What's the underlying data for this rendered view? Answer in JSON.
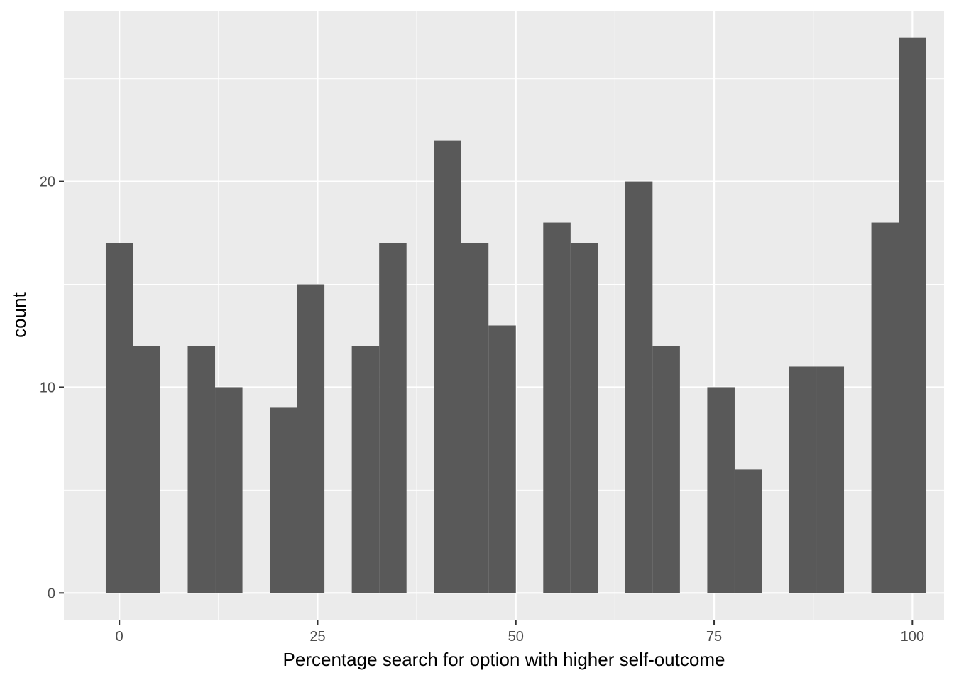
{
  "chart_data": {
    "type": "bar",
    "subtype": "histogram",
    "title": "",
    "xlabel": "Percentage search for option with higher self-outcome",
    "ylabel": "count",
    "xlim": [
      -7,
      104
    ],
    "ylim": [
      -1.3,
      28.3
    ],
    "x_ticks": [
      0,
      25,
      50,
      75,
      100
    ],
    "y_ticks": [
      0,
      10,
      20
    ],
    "x_tick_labels": [
      "0",
      "25",
      "50",
      "75",
      "100"
    ],
    "y_tick_labels": [
      "0",
      "10",
      "20"
    ],
    "x_minor_breaks": [
      -12.5,
      12.5,
      37.5,
      62.5,
      87.5
    ],
    "y_minor_breaks": [
      5,
      15,
      25
    ],
    "grid": true,
    "bar_color": "#595959",
    "panel_color": "#ebebeb",
    "grid_color": "#ffffff",
    "bins": [
      {
        "x0": -1.72,
        "x1": 1.72,
        "count": 17
      },
      {
        "x0": 1.72,
        "x1": 5.17,
        "count": 12
      },
      {
        "x0": 5.17,
        "x1": 8.62,
        "count": 0
      },
      {
        "x0": 8.62,
        "x1": 12.07,
        "count": 12
      },
      {
        "x0": 12.07,
        "x1": 15.52,
        "count": 10
      },
      {
        "x0": 15.52,
        "x1": 18.97,
        "count": 0
      },
      {
        "x0": 18.97,
        "x1": 22.41,
        "count": 9
      },
      {
        "x0": 22.41,
        "x1": 25.86,
        "count": 15
      },
      {
        "x0": 25.86,
        "x1": 29.31,
        "count": 0
      },
      {
        "x0": 29.31,
        "x1": 32.76,
        "count": 12
      },
      {
        "x0": 32.76,
        "x1": 36.21,
        "count": 17
      },
      {
        "x0": 36.21,
        "x1": 39.66,
        "count": 0
      },
      {
        "x0": 39.66,
        "x1": 43.1,
        "count": 22
      },
      {
        "x0": 43.1,
        "x1": 46.55,
        "count": 17
      },
      {
        "x0": 46.55,
        "x1": 50.0,
        "count": 13
      },
      {
        "x0": 50.0,
        "x1": 53.45,
        "count": 0
      },
      {
        "x0": 53.45,
        "x1": 56.9,
        "count": 18
      },
      {
        "x0": 56.9,
        "x1": 60.34,
        "count": 17
      },
      {
        "x0": 60.34,
        "x1": 63.79,
        "count": 0
      },
      {
        "x0": 63.79,
        "x1": 67.24,
        "count": 20
      },
      {
        "x0": 67.24,
        "x1": 70.69,
        "count": 12
      },
      {
        "x0": 70.69,
        "x1": 74.14,
        "count": 0
      },
      {
        "x0": 74.14,
        "x1": 77.59,
        "count": 10
      },
      {
        "x0": 77.59,
        "x1": 81.03,
        "count": 6
      },
      {
        "x0": 81.03,
        "x1": 84.48,
        "count": 0
      },
      {
        "x0": 84.48,
        "x1": 87.93,
        "count": 11
      },
      {
        "x0": 87.93,
        "x1": 91.38,
        "count": 11
      },
      {
        "x0": 91.38,
        "x1": 94.83,
        "count": 0
      },
      {
        "x0": 94.83,
        "x1": 98.28,
        "count": 18
      },
      {
        "x0": 98.28,
        "x1": 101.72,
        "count": 27
      }
    ]
  }
}
